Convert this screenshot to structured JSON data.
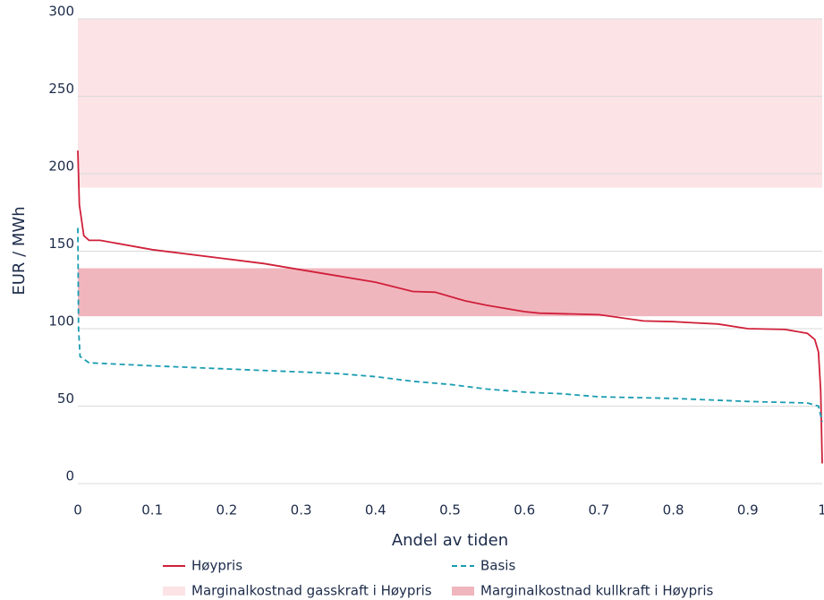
{
  "chart_data": {
    "type": "line",
    "ylabel": "EUR / MWh",
    "xlabel": "Andel av tiden",
    "xlim": [
      0,
      1
    ],
    "ylim": [
      0,
      300
    ],
    "xticks": [
      0,
      0.1,
      0.2,
      0.3,
      0.4,
      0.5,
      0.6,
      0.7,
      0.8,
      0.9,
      1
    ],
    "yticks": [
      0,
      50,
      100,
      150,
      200,
      250,
      300
    ],
    "grid": true,
    "bands": [
      {
        "name": "Marginalkostnad gasskraft i Høypris",
        "color": "#fbe3e6",
        "ymin": 191,
        "ymax": 300
      },
      {
        "name": "Marginalkostnad kullkraft i Høypris",
        "color": "#f0b6be",
        "ymin": 108,
        "ymax": 139
      }
    ],
    "series": [
      {
        "name": "Høypris",
        "color": "#d0203a",
        "linestyle": "solid",
        "x": [
          0,
          0.002,
          0.008,
          0.015,
          0.03,
          0.1,
          0.2,
          0.25,
          0.3,
          0.35,
          0.4,
          0.45,
          0.48,
          0.52,
          0.55,
          0.6,
          0.62,
          0.7,
          0.76,
          0.8,
          0.82,
          0.86,
          0.9,
          0.95,
          0.98,
          0.99,
          0.995,
          0.998,
          1
        ],
        "values": [
          215,
          180,
          160,
          157,
          157,
          151,
          145,
          142,
          138,
          134,
          130,
          124,
          123.5,
          118,
          115,
          111,
          110,
          109,
          105,
          104.5,
          104,
          103,
          100,
          99.5,
          97,
          93,
          85,
          60,
          13
        ]
      },
      {
        "name": "Basis",
        "color": "#1a9cb0",
        "linestyle": "dashed",
        "x": [
          0,
          0.001,
          0.003,
          0.015,
          0.1,
          0.2,
          0.3,
          0.35,
          0.4,
          0.45,
          0.5,
          0.55,
          0.6,
          0.65,
          0.7,
          0.8,
          0.9,
          0.98,
          0.995,
          1
        ],
        "values": [
          165,
          100,
          82,
          78,
          76,
          74,
          72,
          71,
          69,
          66,
          64,
          61,
          59,
          58,
          56,
          55,
          53,
          52,
          50,
          40
        ]
      }
    ]
  }
}
